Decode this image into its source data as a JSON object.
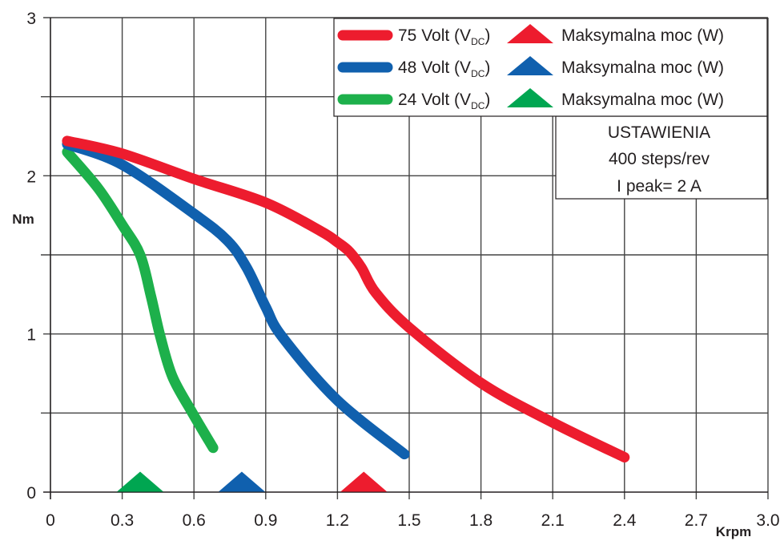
{
  "chart_data": {
    "type": "line",
    "title": "",
    "xlabel": "Krpm",
    "ylabel": "Nm",
    "xlim": [
      0,
      3.0
    ],
    "ylim": [
      0,
      3
    ],
    "grid": true,
    "x_ticks": [
      "0",
      "0.3",
      "0.6",
      "0.9",
      "1.2",
      "1.5",
      "1.8",
      "2.1",
      "2.4",
      "2.7",
      "3.0"
    ],
    "x_tick_values": [
      0,
      0.3,
      0.6,
      0.9,
      1.2,
      1.5,
      1.8,
      2.1,
      2.4,
      2.7,
      3.0
    ],
    "y_ticks": [
      "0",
      "1",
      "2",
      "3"
    ],
    "y_tick_values": [
      0,
      1,
      2,
      3
    ],
    "y_minor_grid_values": [
      0.5,
      1.5,
      2.5
    ],
    "legend_placement": "top-right",
    "series": [
      {
        "name": "75 Volt",
        "name_main": "75 Volt (V",
        "name_sub": "DC",
        "name_end": ")",
        "color": "#ED1C2E",
        "x": [
          0.07,
          0.3,
          0.6,
          0.9,
          1.13,
          1.2,
          1.25,
          1.3,
          1.36,
          1.5,
          1.8,
          2.1,
          2.4
        ],
        "y": [
          2.22,
          2.14,
          1.98,
          1.83,
          1.65,
          1.58,
          1.52,
          1.42,
          1.26,
          1.04,
          0.69,
          0.44,
          0.22
        ]
      },
      {
        "name": "48 Volt",
        "name_main": "48 Volt (V",
        "name_sub": "DC",
        "name_end": ")",
        "color": "#1060AE",
        "x": [
          0.07,
          0.3,
          0.6,
          0.74,
          0.82,
          0.9,
          0.97,
          1.2,
          1.48
        ],
        "y": [
          2.2,
          2.07,
          1.76,
          1.59,
          1.42,
          1.17,
          0.98,
          0.58,
          0.24
        ]
      },
      {
        "name": "24 Volt",
        "name_main": "24 Volt (V",
        "name_sub": "DC",
        "name_end": ")",
        "color": "#1DB04B",
        "x": [
          0.07,
          0.2,
          0.3,
          0.375,
          0.42,
          0.46,
          0.51,
          0.59,
          0.68
        ],
        "y": [
          2.15,
          1.92,
          1.69,
          1.5,
          1.24,
          0.98,
          0.73,
          0.51,
          0.28
        ]
      }
    ],
    "markers": [
      {
        "series": "75 Volt",
        "label": "Maksymalna moc (W)",
        "x": 1.31,
        "y": 0,
        "shape": "triangle",
        "color": "#ED1C2E"
      },
      {
        "series": "48 Volt",
        "label": "Maksymalna moc (W)",
        "x": 0.8,
        "y": 0,
        "shape": "triangle",
        "color": "#1060AE"
      },
      {
        "series": "24 Volt",
        "label": "Maksymalna moc (W)",
        "x": 0.375,
        "y": 0,
        "shape": "triangle",
        "color": "#00A651"
      }
    ],
    "annotations": {
      "settings_box": [
        "USTAWIENIA",
        "400 steps/rev",
        "I peak= 2 A"
      ]
    }
  }
}
